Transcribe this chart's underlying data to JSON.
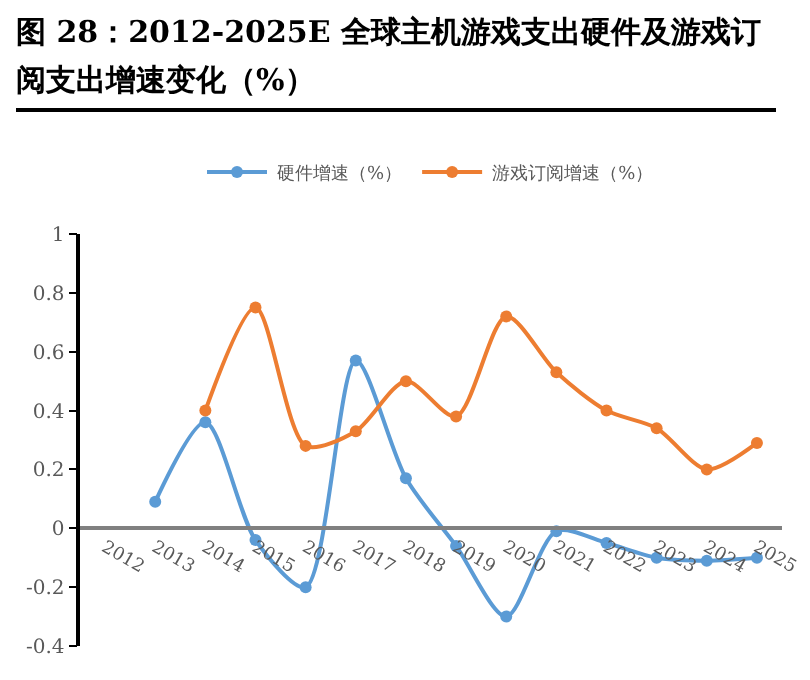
{
  "chart_data": {
    "type": "line",
    "title": "图 28：2012-2025E 全球主机游戏支出硬件及游戏订阅支出增速变化（%）",
    "categories": [
      "2012",
      "2013",
      "2014",
      "2015",
      "2016",
      "2017",
      "2018",
      "2019",
      "2020",
      "2021",
      "2022",
      "2023",
      "2024",
      "2025"
    ],
    "series": [
      {
        "name": "硬件增速（%）",
        "color": "#5b9bd5",
        "values": [
          null,
          0.09,
          0.36,
          -0.04,
          -0.2,
          0.57,
          0.17,
          -0.06,
          -0.3,
          -0.01,
          -0.05,
          -0.1,
          -0.11,
          -0.1
        ]
      },
      {
        "name": "游戏订阅增速（%）",
        "color": "#ed7d31",
        "values": [
          null,
          null,
          0.4,
          0.75,
          0.28,
          0.33,
          0.5,
          0.38,
          0.72,
          0.53,
          0.4,
          0.34,
          0.2,
          0.29
        ]
      }
    ],
    "ylim": [
      -0.4,
      1
    ],
    "yticks": [
      -0.4,
      -0.2,
      0,
      0.2,
      0.4,
      0.6,
      0.8,
      1
    ],
    "grid": false,
    "legend": "top",
    "marker": "circle",
    "line_style": "solid"
  }
}
